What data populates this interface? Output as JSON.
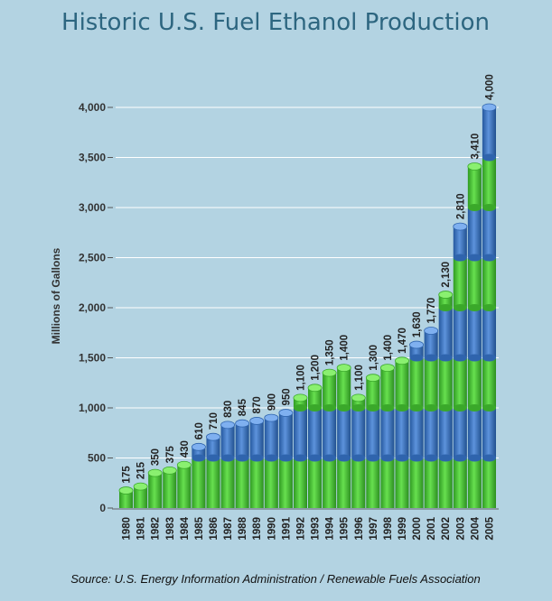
{
  "chart_data": {
    "type": "bar",
    "title": "Historic U.S. Fuel Ethanol Production",
    "ylabel": "Millions of Gallons",
    "xlabel": "",
    "source": "Source: U.S. Energy Information Administration / Renewable Fuels Association",
    "ylim": [
      0,
      4000
    ],
    "yticks": [
      0,
      500,
      1000,
      1500,
      2000,
      2500,
      3000,
      3500,
      4000
    ],
    "ytick_labels": [
      "0",
      "500",
      "1,000",
      "1,500",
      "2,000",
      "2,500",
      "3,000",
      "3,500",
      "4,000"
    ],
    "grid": true,
    "categories": [
      "1980",
      "1981",
      "1982",
      "1983",
      "1984",
      "1985",
      "1986",
      "1987",
      "1988",
      "1989",
      "1990",
      "1991",
      "1992",
      "1993",
      "1994",
      "1995",
      "1996",
      "1997",
      "1998",
      "1999",
      "2000",
      "2001",
      "2002",
      "2003",
      "2004",
      "2005"
    ],
    "values": [
      175,
      215,
      350,
      375,
      430,
      610,
      710,
      830,
      845,
      870,
      900,
      950,
      1100,
      1200,
      1350,
      1400,
      1100,
      1300,
      1400,
      1470,
      1630,
      1770,
      2130,
      2810,
      3410,
      4000
    ],
    "value_labels": [
      "175",
      "215",
      "350",
      "375",
      "430",
      "610",
      "710",
      "830",
      "845",
      "870",
      "900",
      "950",
      "1,100",
      "1,200",
      "1,350",
      "1,400",
      "1,100",
      "1,300",
      "1,400",
      "1,470",
      "1,630",
      "1,770",
      "2,130",
      "2,810",
      "3,410",
      "4,000"
    ],
    "band_size": 500,
    "colors": {
      "green_band": "#4ec83a",
      "blue_band": "#3b75c4",
      "background": "#b3d3e2",
      "title": "#2d6680"
    }
  }
}
